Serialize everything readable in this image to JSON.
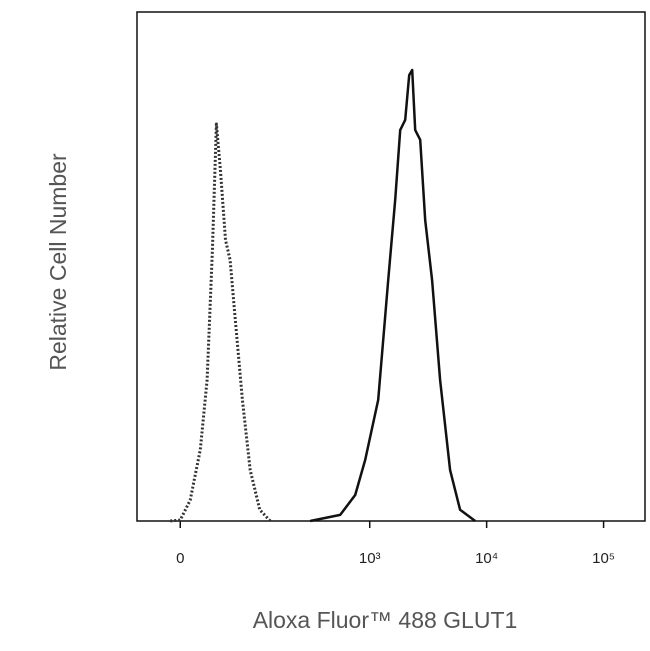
{
  "chart_data": {
    "type": "line",
    "xlabel": "Aloxa Fluor™ 488  GLUT1",
    "ylabel": "Relative Cell Number",
    "xscale": "biexponential",
    "xlim": [
      -46,
      226000
    ],
    "ylim": [
      0,
      100
    ],
    "xticks": [
      0,
      {
        "value": 1000,
        "label": "10³"
      },
      {
        "value": 10000,
        "label": "10⁴"
      },
      {
        "value": 100000,
        "label": "10⁵"
      }
    ],
    "grid": false,
    "series": [
      {
        "color": "#333333",
        "style": "dotted",
        "x": [
          -9.5,
          0,
          9.5,
          19.4,
          26.6,
          32.4,
          37.1,
          42.0,
          48.6,
          55.0,
          62.8,
          74.5,
          89,
          110,
          137
        ],
        "values": [
          0,
          0.2,
          4.1,
          14,
          27.7,
          53.2,
          78,
          69,
          55.2,
          51.3,
          39.5,
          23.8,
          10,
          2.2,
          0
        ]
      },
      {
        "color": "#111111",
        "style": "solid",
        "x": [
          308,
          559,
          751,
          915,
          1181,
          1439,
          1651,
          1823,
          2011,
          2176,
          2309,
          2449,
          2701,
          2982,
          3419,
          4002,
          4875,
          5933,
          7978
        ],
        "values": [
          0,
          1.2,
          5.1,
          12,
          23.8,
          47.3,
          63.1,
          76.8,
          78.8,
          87.6,
          88.6,
          76.8,
          74.9,
          59.1,
          47.3,
          27.7,
          10,
          2.2,
          0
        ]
      }
    ]
  }
}
